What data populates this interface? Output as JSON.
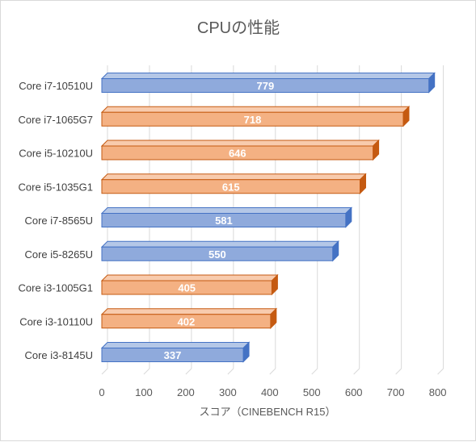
{
  "chart_data": {
    "type": "bar",
    "orientation": "horizontal",
    "title": "CPUの性能",
    "xlabel": "スコア（CINEBENCH R15）",
    "ylabel": "",
    "xlim": [
      0,
      800
    ],
    "xticks": [
      0,
      100,
      200,
      300,
      400,
      500,
      600,
      700,
      800
    ],
    "grid": true,
    "legend": "none",
    "style": "3d-bar",
    "categories": [
      "Core i7-10510U",
      "Core i7-1065G7",
      "Core i5-10210U",
      "Core i5-1035G1",
      "Core i7-8565U",
      "Core i5-8265U",
      "Core i3-1005G1",
      "Core i3-10110U",
      "Core i3-8145U"
    ],
    "values": [
      779,
      718,
      646,
      615,
      581,
      550,
      405,
      402,
      337
    ],
    "bar_colors": [
      "blue",
      "orange",
      "orange",
      "orange",
      "blue",
      "blue",
      "orange",
      "orange",
      "blue"
    ],
    "colors": {
      "blue": {
        "face": "#8faadc",
        "top": "#b4c7e7",
        "side": "#4472c4",
        "edge": "#4472c4"
      },
      "orange": {
        "face": "#f4b183",
        "top": "#f8cbad",
        "side": "#c55a11",
        "edge": "#c55a11"
      }
    }
  }
}
